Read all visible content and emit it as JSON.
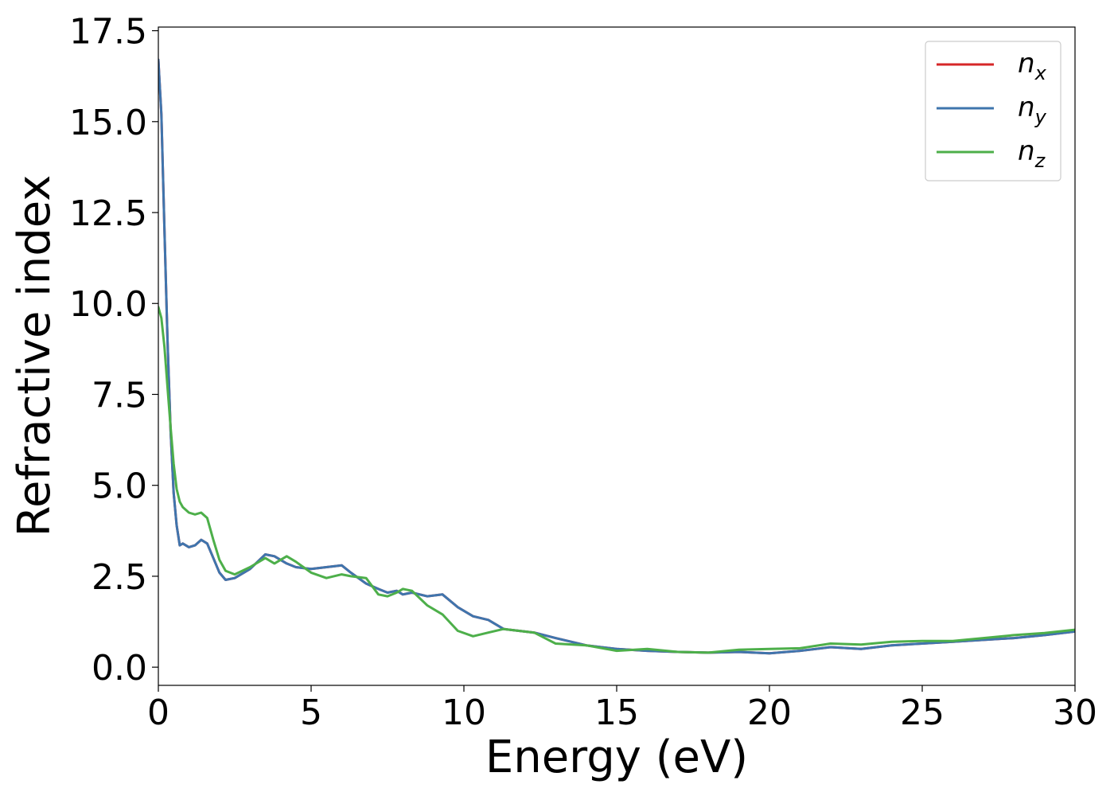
{
  "chart_data": {
    "type": "line",
    "title": "",
    "xlabel": "Energy (eV)",
    "ylabel": "Refractive index",
    "xlim": [
      0,
      30
    ],
    "ylim": [
      -0.5,
      17.6
    ],
    "xticks": [
      0,
      5,
      10,
      15,
      20,
      25,
      30
    ],
    "xtick_labels": [
      "0",
      "5",
      "10",
      "15",
      "20",
      "25",
      "30"
    ],
    "yticks": [
      0,
      2.5,
      5,
      7.5,
      10,
      12.5,
      15,
      17.5
    ],
    "ytick_labels": [
      "0.0",
      "2.5",
      "5.0",
      "7.5",
      "10.0",
      "12.5",
      "15.0",
      "17.5"
    ],
    "grid": false,
    "legend_position": "top-right",
    "series": [
      {
        "name": "n_x",
        "label_base": "n",
        "label_sub": "x",
        "color": "#d62728",
        "x": [
          0,
          0.1,
          0.2,
          0.3,
          0.4,
          0.5,
          0.6,
          0.7,
          0.8,
          1.0,
          1.2,
          1.4,
          1.6,
          1.8,
          2.0,
          2.2,
          2.5,
          3.0,
          3.5,
          3.8,
          4.2,
          4.5,
          5.0,
          5.5,
          6.0,
          6.3,
          6.8,
          7.2,
          7.5,
          7.8,
          8.0,
          8.3,
          8.8,
          9.3,
          9.8,
          10.3,
          10.8,
          11.3,
          11.8,
          12.3,
          13.0,
          14.0,
          15.0,
          16.0,
          17.0,
          18.0,
          19.0,
          20.0,
          21.0,
          22.0,
          23.0,
          24.0,
          25.0,
          26.0,
          27.0,
          28.0,
          29.0,
          30.0
        ],
        "values": [
          16.7,
          15.2,
          12.0,
          9.0,
          6.5,
          4.8,
          3.9,
          3.35,
          3.4,
          3.3,
          3.35,
          3.5,
          3.4,
          3.0,
          2.6,
          2.4,
          2.45,
          2.7,
          3.1,
          3.05,
          2.85,
          2.75,
          2.7,
          2.75,
          2.8,
          2.6,
          2.3,
          2.15,
          2.05,
          2.1,
          2.0,
          2.05,
          1.95,
          2.0,
          1.65,
          1.4,
          1.3,
          1.05,
          1.0,
          0.95,
          0.8,
          0.6,
          0.5,
          0.45,
          0.42,
          0.4,
          0.42,
          0.38,
          0.45,
          0.55,
          0.5,
          0.6,
          0.65,
          0.7,
          0.75,
          0.8,
          0.88,
          0.98
        ]
      },
      {
        "name": "n_y",
        "label_base": "n",
        "label_sub": "y",
        "color": "#3f75ad",
        "x": [
          0,
          0.1,
          0.2,
          0.3,
          0.4,
          0.5,
          0.6,
          0.7,
          0.8,
          1.0,
          1.2,
          1.4,
          1.6,
          1.8,
          2.0,
          2.2,
          2.5,
          3.0,
          3.5,
          3.8,
          4.2,
          4.5,
          5.0,
          5.5,
          6.0,
          6.3,
          6.8,
          7.2,
          7.5,
          7.8,
          8.0,
          8.3,
          8.8,
          9.3,
          9.8,
          10.3,
          10.8,
          11.3,
          11.8,
          12.3,
          13.0,
          14.0,
          15.0,
          16.0,
          17.0,
          18.0,
          19.0,
          20.0,
          21.0,
          22.0,
          23.0,
          24.0,
          25.0,
          26.0,
          27.0,
          28.0,
          29.0,
          30.0
        ],
        "values": [
          16.7,
          15.2,
          12.0,
          9.0,
          6.5,
          4.8,
          3.9,
          3.35,
          3.4,
          3.3,
          3.35,
          3.5,
          3.4,
          3.0,
          2.6,
          2.4,
          2.45,
          2.7,
          3.1,
          3.05,
          2.85,
          2.75,
          2.7,
          2.75,
          2.8,
          2.6,
          2.3,
          2.15,
          2.05,
          2.1,
          2.0,
          2.05,
          1.95,
          2.0,
          1.65,
          1.4,
          1.3,
          1.05,
          1.0,
          0.95,
          0.8,
          0.6,
          0.5,
          0.45,
          0.42,
          0.4,
          0.42,
          0.38,
          0.45,
          0.55,
          0.5,
          0.6,
          0.65,
          0.7,
          0.75,
          0.8,
          0.88,
          0.98
        ]
      },
      {
        "name": "n_z",
        "label_base": "n",
        "label_sub": "z",
        "color": "#4daf4a",
        "x": [
          0,
          0.1,
          0.2,
          0.3,
          0.4,
          0.5,
          0.6,
          0.7,
          0.8,
          1.0,
          1.2,
          1.4,
          1.6,
          1.8,
          2.0,
          2.2,
          2.5,
          3.0,
          3.5,
          3.8,
          4.2,
          4.5,
          5.0,
          5.5,
          6.0,
          6.3,
          6.8,
          7.2,
          7.5,
          7.8,
          8.0,
          8.3,
          8.8,
          9.3,
          9.8,
          10.3,
          10.8,
          11.3,
          11.8,
          12.3,
          13.0,
          14.0,
          15.0,
          16.0,
          17.0,
          18.0,
          19.0,
          20.0,
          21.0,
          22.0,
          23.0,
          24.0,
          25.0,
          26.0,
          27.0,
          28.0,
          29.0,
          30.0
        ],
        "values": [
          9.9,
          9.6,
          8.8,
          7.7,
          6.6,
          5.6,
          4.9,
          4.55,
          4.4,
          4.25,
          4.2,
          4.25,
          4.1,
          3.5,
          2.95,
          2.65,
          2.55,
          2.75,
          3.0,
          2.85,
          3.05,
          2.9,
          2.6,
          2.45,
          2.55,
          2.5,
          2.45,
          2.0,
          1.95,
          2.05,
          2.15,
          2.1,
          1.7,
          1.45,
          1.0,
          0.85,
          0.95,
          1.05,
          1.0,
          0.95,
          0.65,
          0.6,
          0.45,
          0.5,
          0.42,
          0.4,
          0.48,
          0.5,
          0.52,
          0.65,
          0.62,
          0.7,
          0.72,
          0.72,
          0.8,
          0.88,
          0.94,
          1.03
        ]
      }
    ]
  }
}
